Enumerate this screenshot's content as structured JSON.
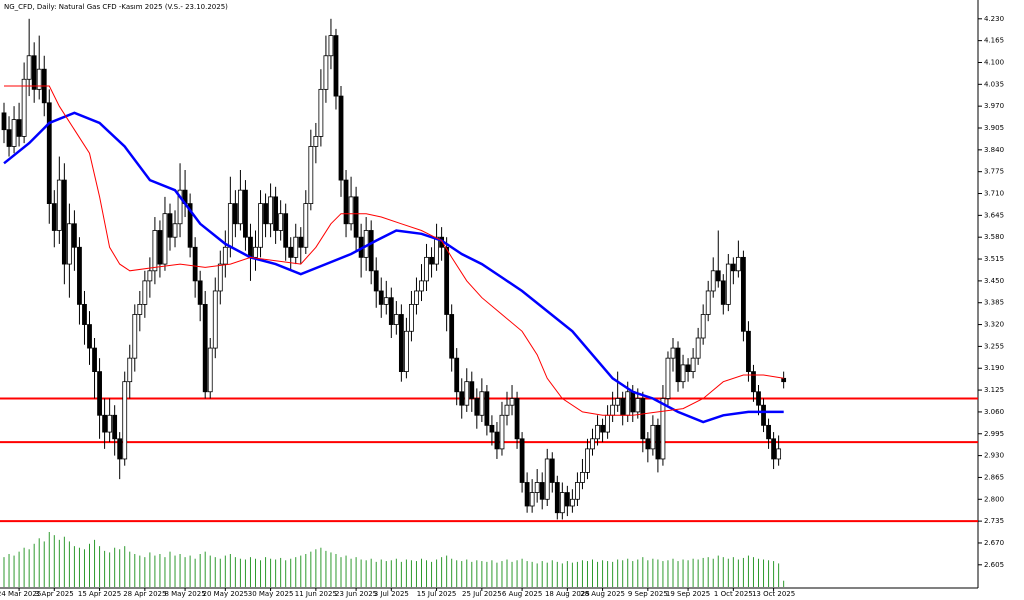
{
  "chart_data": {
    "type": "candlestick",
    "title": "NG_CFD, Daily:  Natural Gas CFD -Kasım 2025 (V.S.- 23.10.2025)",
    "categories": [
      null,
      null,
      null,
      "24 Mar 2025",
      null,
      null,
      null,
      null,
      null,
      null,
      "3 Apr 2025",
      null,
      null,
      null,
      null,
      null,
      null,
      null,
      null,
      "15 Apr 2025",
      null,
      null,
      null,
      null,
      null,
      null,
      null,
      null,
      "28 Apr 2025",
      null,
      null,
      null,
      null,
      null,
      null,
      null,
      "8 May 2025",
      null,
      null,
      null,
      null,
      null,
      null,
      null,
      "20 May 2025",
      null,
      null,
      null,
      null,
      null,
      null,
      null,
      null,
      "30 May 2025",
      null,
      null,
      null,
      null,
      null,
      null,
      null,
      null,
      "11 Jun 2025",
      null,
      null,
      null,
      null,
      null,
      null,
      null,
      "23 Jun 2025",
      null,
      null,
      null,
      null,
      null,
      null,
      "3 Jul 2025",
      null,
      null,
      null,
      null,
      null,
      null,
      null,
      null,
      "15 Jul 2025",
      null,
      null,
      null,
      null,
      null,
      null,
      null,
      null,
      "25 Jul 2025",
      null,
      null,
      null,
      null,
      null,
      null,
      null,
      "6 Aug 2025",
      null,
      null,
      null,
      null,
      null,
      null,
      null,
      null,
      "18 Aug 2025",
      null,
      null,
      null,
      null,
      null,
      null,
      "28 Aug 2025",
      null,
      null,
      null,
      null,
      null,
      null,
      null,
      null,
      "9 Sep 2025",
      null,
      null,
      null,
      null,
      null,
      null,
      null,
      "19 Sep 2025",
      null,
      null,
      null,
      null,
      null,
      null,
      null,
      null,
      "1 Oct 2025",
      null,
      null,
      null,
      null,
      null,
      null,
      null,
      "13 Oct 2025",
      null,
      null
    ],
    "candles": [
      [
        3.95,
        3.98,
        3.86,
        3.9
      ],
      [
        3.9,
        3.94,
        3.82,
        3.85
      ],
      [
        3.85,
        3.97,
        3.83,
        3.93
      ],
      [
        3.93,
        3.98,
        3.85,
        3.88
      ],
      [
        3.88,
        4.1,
        3.86,
        4.05
      ],
      [
        4.05,
        4.23,
        4.0,
        4.12
      ],
      [
        4.12,
        4.16,
        3.98,
        4.02
      ],
      [
        4.02,
        4.18,
        3.99,
        4.08
      ],
      [
        4.08,
        4.12,
        3.94,
        3.98
      ],
      [
        3.98,
        4.02,
        3.62,
        3.68
      ],
      [
        3.68,
        3.72,
        3.55,
        3.6
      ],
      [
        3.6,
        3.82,
        3.56,
        3.75
      ],
      [
        3.75,
        3.8,
        3.44,
        3.5
      ],
      [
        3.5,
        3.68,
        3.4,
        3.62
      ],
      [
        3.62,
        3.66,
        3.48,
        3.55
      ],
      [
        3.55,
        3.58,
        3.32,
        3.38
      ],
      [
        3.38,
        3.42,
        3.26,
        3.32
      ],
      [
        3.32,
        3.36,
        3.2,
        3.25
      ],
      [
        3.25,
        3.28,
        3.1,
        3.18
      ],
      [
        3.18,
        3.22,
        2.98,
        3.05
      ],
      [
        3.05,
        3.1,
        2.95,
        3.0
      ],
      [
        3.0,
        3.1,
        2.97,
        3.05
      ],
      [
        3.05,
        3.08,
        2.93,
        2.98
      ],
      [
        2.98,
        3.0,
        2.86,
        2.92
      ],
      [
        2.92,
        3.18,
        2.9,
        3.15
      ],
      [
        3.15,
        3.26,
        3.1,
        3.22
      ],
      [
        3.22,
        3.38,
        3.18,
        3.35
      ],
      [
        3.35,
        3.42,
        3.3,
        3.38
      ],
      [
        3.38,
        3.48,
        3.34,
        3.45
      ],
      [
        3.45,
        3.52,
        3.4,
        3.48
      ],
      [
        3.48,
        3.64,
        3.44,
        3.6
      ],
      [
        3.6,
        3.63,
        3.46,
        3.5
      ],
      [
        3.5,
        3.7,
        3.48,
        3.65
      ],
      [
        3.65,
        3.68,
        3.54,
        3.58
      ],
      [
        3.58,
        3.66,
        3.55,
        3.62
      ],
      [
        3.62,
        3.8,
        3.58,
        3.72
      ],
      [
        3.72,
        3.78,
        3.64,
        3.68
      ],
      [
        3.68,
        3.71,
        3.52,
        3.55
      ],
      [
        3.55,
        3.58,
        3.4,
        3.45
      ],
      [
        3.45,
        3.48,
        3.33,
        3.38
      ],
      [
        3.38,
        3.42,
        3.1,
        3.12
      ],
      [
        3.12,
        3.28,
        3.1,
        3.25
      ],
      [
        3.25,
        3.46,
        3.22,
        3.42
      ],
      [
        3.42,
        3.54,
        3.38,
        3.5
      ],
      [
        3.5,
        3.6,
        3.46,
        3.55
      ],
      [
        3.55,
        3.76,
        3.52,
        3.68
      ],
      [
        3.68,
        3.72,
        3.58,
        3.62
      ],
      [
        3.62,
        3.78,
        3.6,
        3.72
      ],
      [
        3.72,
        3.75,
        3.54,
        3.58
      ],
      [
        3.58,
        3.62,
        3.45,
        3.52
      ],
      [
        3.52,
        3.6,
        3.48,
        3.55
      ],
      [
        3.55,
        3.72,
        3.52,
        3.68
      ],
      [
        3.68,
        3.71,
        3.58,
        3.62
      ],
      [
        3.62,
        3.74,
        3.58,
        3.7
      ],
      [
        3.7,
        3.73,
        3.56,
        3.6
      ],
      [
        3.6,
        3.69,
        3.57,
        3.65
      ],
      [
        3.65,
        3.68,
        3.51,
        3.55
      ],
      [
        3.55,
        3.58,
        3.48,
        3.52
      ],
      [
        3.52,
        3.62,
        3.5,
        3.58
      ],
      [
        3.58,
        3.61,
        3.5,
        3.55
      ],
      [
        3.55,
        3.72,
        3.53,
        3.68
      ],
      [
        3.68,
        3.9,
        3.66,
        3.85
      ],
      [
        3.85,
        3.92,
        3.8,
        3.88
      ],
      [
        3.88,
        4.08,
        3.85,
        4.02
      ],
      [
        4.02,
        4.18,
        3.98,
        4.12
      ],
      [
        4.12,
        4.23,
        4.08,
        4.18
      ],
      [
        4.18,
        4.2,
        3.96,
        4.0
      ],
      [
        4.0,
        4.03,
        3.7,
        3.75
      ],
      [
        3.75,
        3.78,
        3.58,
        3.62
      ],
      [
        3.62,
        3.76,
        3.6,
        3.7
      ],
      [
        3.7,
        3.73,
        3.54,
        3.58
      ],
      [
        3.58,
        3.62,
        3.46,
        3.52
      ],
      [
        3.52,
        3.64,
        3.48,
        3.6
      ],
      [
        3.6,
        3.63,
        3.44,
        3.48
      ],
      [
        3.48,
        3.52,
        3.37,
        3.42
      ],
      [
        3.42,
        3.46,
        3.34,
        3.38
      ],
      [
        3.38,
        3.45,
        3.35,
        3.4
      ],
      [
        3.4,
        3.43,
        3.28,
        3.32
      ],
      [
        3.32,
        3.39,
        3.29,
        3.35
      ],
      [
        3.35,
        3.38,
        3.15,
        3.18
      ],
      [
        3.18,
        3.34,
        3.16,
        3.3
      ],
      [
        3.3,
        3.42,
        3.27,
        3.38
      ],
      [
        3.38,
        3.46,
        3.35,
        3.42
      ],
      [
        3.42,
        3.5,
        3.39,
        3.45
      ],
      [
        3.45,
        3.56,
        3.42,
        3.52
      ],
      [
        3.52,
        3.55,
        3.46,
        3.5
      ],
      [
        3.5,
        3.62,
        3.48,
        3.58
      ],
      [
        3.58,
        3.61,
        3.51,
        3.55
      ],
      [
        3.55,
        3.58,
        3.3,
        3.35
      ],
      [
        3.35,
        3.38,
        3.18,
        3.22
      ],
      [
        3.22,
        3.25,
        3.08,
        3.12
      ],
      [
        3.12,
        3.16,
        3.04,
        3.08
      ],
      [
        3.08,
        3.19,
        3.06,
        3.15
      ],
      [
        3.15,
        3.18,
        3.06,
        3.1
      ],
      [
        3.1,
        3.13,
        3.01,
        3.05
      ],
      [
        3.05,
        3.16,
        3.03,
        3.12
      ],
      [
        3.12,
        3.14,
        2.99,
        3.02
      ],
      [
        3.02,
        3.05,
        2.96,
        3.0
      ],
      [
        3.0,
        3.03,
        2.92,
        2.95
      ],
      [
        2.95,
        3.09,
        2.93,
        3.05
      ],
      [
        3.05,
        3.12,
        3.02,
        3.08
      ],
      [
        3.08,
        3.14,
        3.05,
        3.1
      ],
      [
        3.1,
        3.12,
        2.95,
        2.98
      ],
      [
        2.98,
        3.0,
        2.82,
        2.85
      ],
      [
        2.85,
        2.88,
        2.76,
        2.78
      ],
      [
        2.78,
        2.86,
        2.76,
        2.82
      ],
      [
        2.82,
        2.89,
        2.79,
        2.85
      ],
      [
        2.85,
        2.88,
        2.77,
        2.8
      ],
      [
        2.8,
        2.95,
        2.78,
        2.92
      ],
      [
        2.92,
        2.94,
        2.82,
        2.85
      ],
      [
        2.85,
        2.87,
        2.74,
        2.76
      ],
      [
        2.76,
        2.85,
        2.74,
        2.82
      ],
      [
        2.82,
        2.84,
        2.75,
        2.78
      ],
      [
        2.78,
        2.83,
        2.76,
        2.8
      ],
      [
        2.8,
        2.88,
        2.78,
        2.85
      ],
      [
        2.85,
        2.92,
        2.83,
        2.88
      ],
      [
        2.88,
        2.98,
        2.86,
        2.95
      ],
      [
        2.95,
        3.01,
        2.93,
        2.98
      ],
      [
        2.98,
        3.05,
        2.96,
        3.02
      ],
      [
        3.02,
        3.04,
        2.97,
        3.0
      ],
      [
        3.0,
        3.08,
        2.98,
        3.05
      ],
      [
        3.05,
        3.12,
        3.03,
        3.08
      ],
      [
        3.08,
        3.18,
        3.06,
        3.1
      ],
      [
        3.1,
        3.12,
        3.02,
        3.05
      ],
      [
        3.05,
        3.15,
        3.03,
        3.12
      ],
      [
        3.12,
        3.14,
        3.03,
        3.06
      ],
      [
        3.06,
        3.13,
        3.04,
        3.1
      ],
      [
        3.1,
        3.12,
        2.94,
        2.98
      ],
      [
        2.98,
        3.0,
        2.91,
        2.95
      ],
      [
        2.95,
        3.05,
        2.93,
        3.02
      ],
      [
        3.02,
        3.04,
        2.88,
        2.92
      ],
      [
        2.92,
        3.14,
        2.9,
        3.1
      ],
      [
        3.1,
        3.24,
        3.08,
        3.22
      ],
      [
        3.22,
        3.28,
        3.18,
        3.25
      ],
      [
        3.25,
        3.27,
        3.12,
        3.15
      ],
      [
        3.15,
        3.23,
        3.13,
        3.2
      ],
      [
        3.2,
        3.22,
        3.15,
        3.18
      ],
      [
        3.18,
        3.25,
        3.16,
        3.22
      ],
      [
        3.22,
        3.31,
        3.2,
        3.28
      ],
      [
        3.28,
        3.38,
        3.26,
        3.35
      ],
      [
        3.35,
        3.45,
        3.33,
        3.42
      ],
      [
        3.42,
        3.52,
        3.4,
        3.48
      ],
      [
        3.48,
        3.6,
        3.43,
        3.45
      ],
      [
        3.45,
        3.47,
        3.35,
        3.38
      ],
      [
        3.38,
        3.53,
        3.36,
        3.5
      ],
      [
        3.5,
        3.52,
        3.44,
        3.48
      ],
      [
        3.48,
        3.57,
        3.46,
        3.52
      ],
      [
        3.52,
        3.54,
        3.27,
        3.3
      ],
      [
        3.3,
        3.33,
        3.15,
        3.18
      ],
      [
        3.18,
        3.2,
        3.09,
        3.12
      ],
      [
        3.12,
        3.14,
        3.05,
        3.08
      ],
      [
        3.08,
        3.1,
        3.0,
        3.02
      ],
      [
        3.02,
        3.04,
        2.95,
        2.98
      ],
      [
        2.98,
        3.0,
        2.89,
        2.92
      ],
      [
        2.92,
        2.99,
        2.9,
        2.95
      ],
      [
        3.16,
        3.18,
        3.13,
        3.15
      ]
    ],
    "up_color": "#ffffff",
    "down_color": "#000000",
    "ma": [
      {
        "color": "#0000ff",
        "x": [
          0,
          5,
          9,
          14,
          19,
          24,
          29,
          34,
          39,
          44,
          49,
          54,
          59,
          64,
          69,
          74,
          78,
          83,
          87,
          91,
          95,
          99,
          103,
          108,
          113,
          117,
          121,
          125,
          129,
          134,
          139,
          143,
          148,
          155
        ],
        "values": [
          3.8,
          3.86,
          3.92,
          3.95,
          3.92,
          3.85,
          3.75,
          3.72,
          3.62,
          3.56,
          3.52,
          3.5,
          3.47,
          3.5,
          3.53,
          3.57,
          3.6,
          3.59,
          3.57,
          3.53,
          3.5,
          3.46,
          3.42,
          3.36,
          3.3,
          3.23,
          3.16,
          3.12,
          3.1,
          3.06,
          3.03,
          3.05,
          3.06,
          3.06
        ]
      },
      {
        "color": "#ff0000",
        "x": [
          0,
          9,
          11,
          14,
          17,
          19,
          21,
          23,
          25,
          30,
          35,
          40,
          45,
          49,
          54,
          59,
          62,
          65,
          67,
          72,
          75,
          79,
          83,
          87,
          89,
          92,
          95,
          99,
          103,
          106,
          108,
          111,
          115,
          119,
          125,
          130,
          135,
          139,
          143,
          147,
          151,
          155
        ],
        "values": [
          4.03,
          4.03,
          3.97,
          3.9,
          3.83,
          3.7,
          3.55,
          3.5,
          3.48,
          3.49,
          3.5,
          3.49,
          3.5,
          3.52,
          3.51,
          3.5,
          3.55,
          3.62,
          3.65,
          3.65,
          3.64,
          3.62,
          3.6,
          3.57,
          3.52,
          3.45,
          3.4,
          3.35,
          3.3,
          3.23,
          3.16,
          3.1,
          3.06,
          3.05,
          3.05,
          3.06,
          3.07,
          3.1,
          3.15,
          3.17,
          3.17,
          3.16
        ]
      }
    ],
    "volume": [
      38,
      42,
      40,
      45,
      50,
      48,
      55,
      62,
      58,
      70,
      66,
      60,
      64,
      58,
      52,
      50,
      48,
      55,
      60,
      52,
      46,
      44,
      50,
      48,
      52,
      45,
      42,
      40,
      38,
      44,
      40,
      42,
      38,
      45,
      40,
      42,
      38,
      40,
      36,
      42,
      45,
      40,
      38,
      36,
      40,
      42,
      38,
      36,
      35,
      38,
      36,
      34,
      38,
      36,
      35,
      37,
      34,
      36,
      38,
      40,
      42,
      45,
      48,
      50,
      46,
      44,
      42,
      38,
      40,
      36,
      38,
      35,
      34,
      36,
      32,
      35,
      33,
      34,
      36,
      32,
      35,
      34,
      33,
      36,
      34,
      32,
      35,
      38,
      40,
      36,
      34,
      33,
      35,
      32,
      34,
      33,
      32,
      34,
      31,
      33,
      35,
      32,
      34,
      36,
      33,
      32,
      30,
      33,
      31,
      34,
      32,
      30,
      33,
      31,
      32,
      34,
      33,
      35,
      32,
      34,
      33,
      32,
      35,
      34,
      36,
      33,
      35,
      38,
      34,
      36,
      35,
      33,
      34,
      36,
      33,
      35,
      34,
      36,
      35,
      37,
      38,
      36,
      40,
      38,
      36,
      38,
      35,
      37,
      40,
      38,
      36,
      35,
      34,
      33,
      30,
      8
    ],
    "volume_color": "#2e9a2e",
    "levels": [
      3.1,
      2.97,
      2.735
    ],
    "level_color": "#ff0000",
    "ylim": [
      2.53,
      4.28
    ],
    "yticks": [
      {
        "value": 4.23,
        "label": "4.230"
      },
      4.165,
      {
        "value": 4.1,
        "label": "4.100"
      },
      4.035,
      {
        "value": 3.97,
        "label": "3.970"
      },
      3.905,
      {
        "value": 3.84,
        "label": "3.840"
      },
      3.775,
      {
        "value": 3.71,
        "label": "3.710"
      },
      3.645,
      {
        "value": 3.58,
        "label": "3.580"
      },
      3.515,
      {
        "value": 3.45,
        "label": "3.450"
      },
      3.385,
      {
        "value": 3.32,
        "label": "3.320"
      },
      3.255,
      {
        "value": 3.19,
        "label": "3.190"
      },
      3.125,
      {
        "value": 3.06,
        "label": "3.060"
      },
      2.995,
      {
        "value": 2.93,
        "label": "2.930"
      },
      2.865,
      {
        "value": 2.8,
        "label": "2.800"
      },
      2.735,
      {
        "value": 2.67,
        "label": "2.670"
      },
      2.605
    ]
  }
}
